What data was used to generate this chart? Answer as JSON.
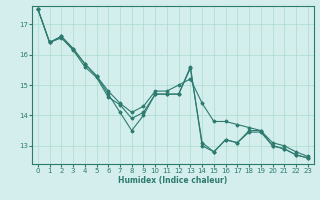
{
  "xlabel": "Humidex (Indice chaleur)",
  "ylabel": "",
  "background_color": "#d4eeee",
  "grid_color": "#aaddcc",
  "line_color": "#2d7a6e",
  "xlim": [
    -0.5,
    23.5
  ],
  "ylim": [
    12.4,
    17.6
  ],
  "yticks": [
    13,
    14,
    15,
    16,
    17
  ],
  "xticks": [
    0,
    1,
    2,
    3,
    4,
    5,
    6,
    7,
    8,
    9,
    10,
    11,
    12,
    13,
    14,
    15,
    16,
    17,
    18,
    19,
    20,
    21,
    22,
    23
  ],
  "series": [
    [
      17.5,
      16.4,
      16.6,
      16.2,
      15.7,
      15.3,
      14.7,
      14.1,
      13.5,
      14.0,
      14.7,
      14.7,
      14.7,
      15.6,
      13.0,
      12.8,
      13.2,
      13.1,
      13.5,
      13.5,
      13.0,
      12.9,
      12.7,
      12.6
    ],
    [
      17.5,
      16.4,
      16.6,
      16.2,
      15.7,
      15.3,
      14.8,
      14.4,
      14.1,
      14.3,
      14.8,
      14.8,
      15.0,
      15.2,
      14.4,
      13.8,
      13.8,
      13.7,
      13.6,
      13.5,
      13.1,
      13.0,
      12.8,
      12.65
    ],
    [
      17.5,
      16.4,
      16.55,
      16.15,
      15.6,
      15.25,
      14.6,
      14.35,
      13.9,
      14.1,
      14.7,
      14.7,
      14.7,
      15.55,
      13.1,
      12.8,
      13.2,
      13.1,
      13.45,
      13.45,
      13.0,
      12.9,
      12.7,
      12.6
    ]
  ]
}
